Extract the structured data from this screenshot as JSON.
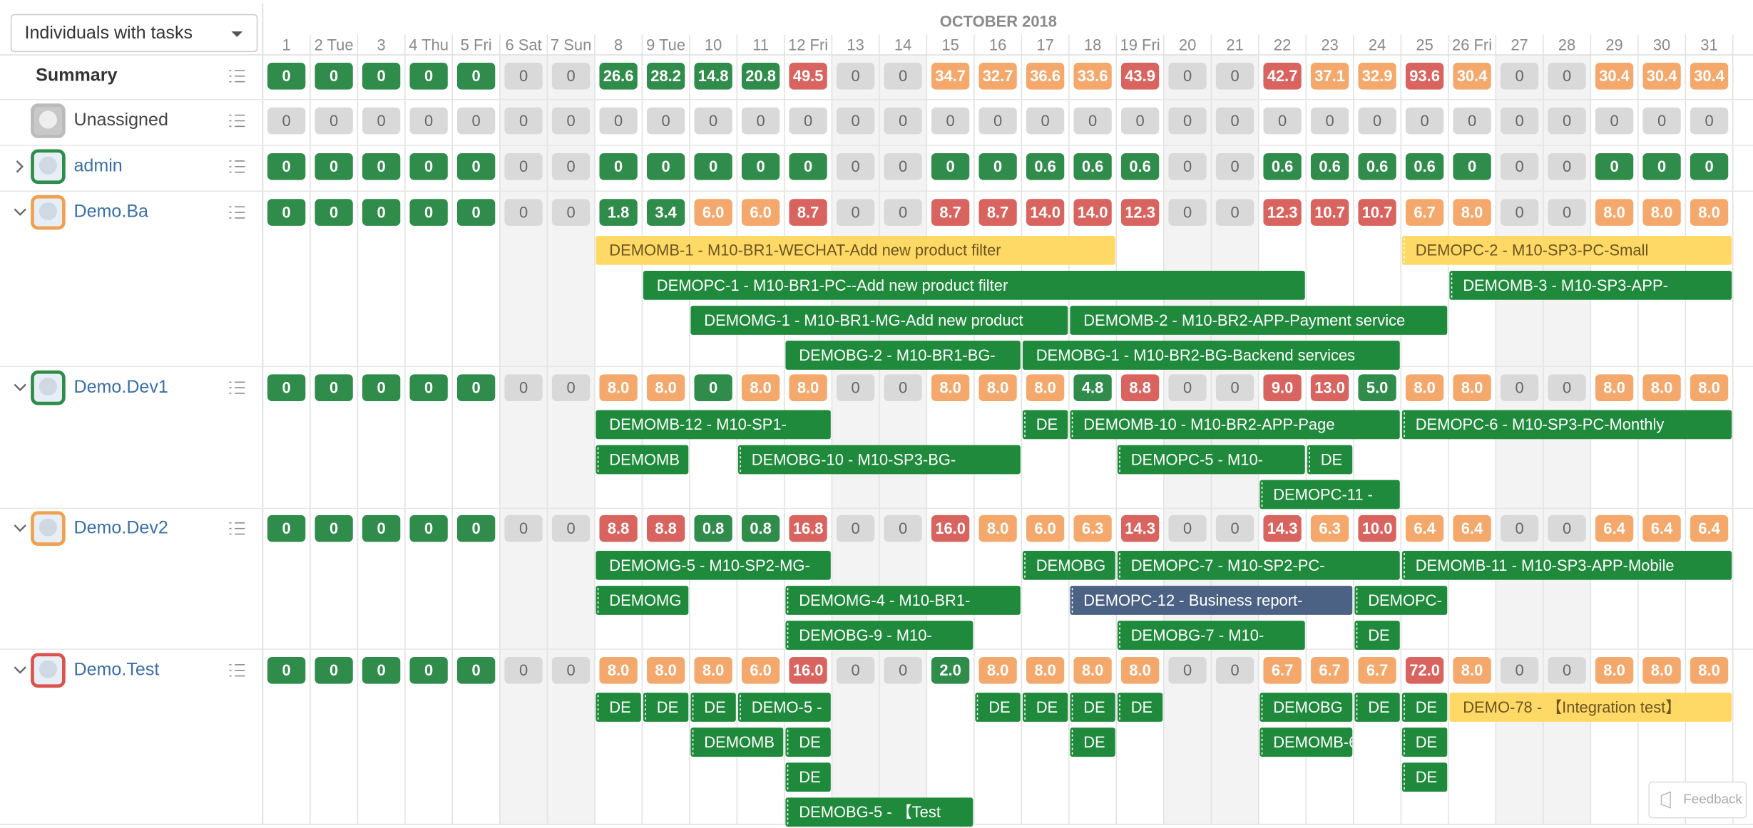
{
  "toolbar": {
    "filter": "Individuals with tasks"
  },
  "calendar": {
    "month": "OCTOBER 2018",
    "days": [
      "1",
      "2 Tue",
      "3",
      "4 Thu",
      "5 Fri",
      "6 Sat",
      "7 Sun",
      "8",
      "9 Tue",
      "10",
      "11",
      "12 Fri",
      "13",
      "14",
      "15",
      "16",
      "17",
      "18",
      "19 Fri",
      "20",
      "21",
      "22",
      "23",
      "24",
      "25",
      "26 Fri",
      "27",
      "28",
      "29",
      "30",
      "31"
    ]
  },
  "rows": [
    {
      "name": "Summary",
      "hours": [
        "0",
        "0",
        "0",
        "0",
        "0",
        "0",
        "0",
        "26.6",
        "28.2",
        "14.8",
        "20.8",
        "49.5",
        "0",
        "0",
        "34.7",
        "32.7",
        "36.6",
        "33.6",
        "43.9",
        "0",
        "0",
        "42.7",
        "37.1",
        "32.9",
        "93.6",
        "30.4",
        "0",
        "0",
        "30.4",
        "30.4",
        "30.4"
      ],
      "tasks": []
    },
    {
      "name": "Unassigned",
      "hours": [
        "0",
        "0",
        "0",
        "0",
        "0",
        "0",
        "0",
        "0",
        "0",
        "0",
        "0",
        "0",
        "0",
        "0",
        "0",
        "0",
        "0",
        "0",
        "0",
        "0",
        "0",
        "0",
        "0",
        "0",
        "0",
        "0",
        "0",
        "0",
        "0",
        "0",
        "0"
      ],
      "tasks": []
    },
    {
      "name": "admin",
      "hours": [
        "0",
        "0",
        "0",
        "0",
        "0",
        "0",
        "0",
        "0",
        "0",
        "0",
        "0",
        "0",
        "0",
        "0",
        "0",
        "0",
        "0.6",
        "0.6",
        "0.6",
        "0",
        "0",
        "0.6",
        "0.6",
        "0.6",
        "0.6",
        "0",
        "0",
        "0",
        "0",
        "0",
        "0"
      ],
      "tasks": []
    },
    {
      "name": "Demo.Ba",
      "hours": [
        "0",
        "0",
        "0",
        "0",
        "0",
        "0",
        "0",
        "1.8",
        "3.4",
        "6.0",
        "6.0",
        "8.7",
        "0",
        "0",
        "8.7",
        "8.7",
        "14.0",
        "14.0",
        "12.3",
        "0",
        "0",
        "12.3",
        "10.7",
        "10.7",
        "6.7",
        "8.0",
        "0",
        "0",
        "8.0",
        "8.0",
        "8.0"
      ],
      "tasks": [
        {
          "label": "DEMOMB-1 - M10-BR1-WECHAT-Add new product filter"
        },
        {
          "label": "DEMOPC-2 - M10-SP3-PC-Small"
        },
        {
          "label": "DEMOPC-1 - M10-BR1-PC--Add new product filter"
        },
        {
          "label": "DEMOMB-3 - M10-SP3-APP-"
        },
        {
          "label": "DEMOMG-1 - M10-BR1-MG-Add new product"
        },
        {
          "label": "DEMOMB-2 - M10-BR2-APP-Payment service"
        },
        {
          "label": "DEMOBG-2 - M10-BR1-BG-"
        },
        {
          "label": "DEMOBG-1 - M10-BR2-BG-Backend services"
        }
      ]
    },
    {
      "name": "Demo.Dev1",
      "hours": [
        "0",
        "0",
        "0",
        "0",
        "0",
        "0",
        "0",
        "8.0",
        "8.0",
        "0",
        "8.0",
        "8.0",
        "0",
        "0",
        "8.0",
        "8.0",
        "8.0",
        "4.8",
        "8.8",
        "0",
        "0",
        "9.0",
        "13.0",
        "5.0",
        "8.0",
        "8.0",
        "0",
        "0",
        "8.0",
        "8.0",
        "8.0"
      ],
      "tasks": [
        {
          "label": "DEMOMB-12 - M10-SP1-"
        },
        {
          "label": "DE"
        },
        {
          "label": "DEMOMB-10 - M10-BR2-APP-Page"
        },
        {
          "label": "DEMOPC-6 - M10-SP3-PC-Monthly"
        },
        {
          "label": "DEMOMB"
        },
        {
          "label": "DEMOBG-10 - M10-SP3-BG-"
        },
        {
          "label": "DEMOPC-5 - M10-"
        },
        {
          "label": "DE"
        },
        {
          "label": "DEMOPC-11 -"
        }
      ]
    },
    {
      "name": "Demo.Dev2",
      "hours": [
        "0",
        "0",
        "0",
        "0",
        "0",
        "0",
        "0",
        "8.8",
        "8.8",
        "0.8",
        "0.8",
        "16.8",
        "0",
        "0",
        "16.0",
        "8.0",
        "6.0",
        "6.3",
        "14.3",
        "0",
        "0",
        "14.3",
        "6.3",
        "10.0",
        "6.4",
        "6.4",
        "0",
        "0",
        "6.4",
        "6.4",
        "6.4"
      ],
      "tasks": [
        {
          "label": "DEMOMG-5 - M10-SP2-MG-"
        },
        {
          "label": "DEMOBG"
        },
        {
          "label": "DEMOPC-7 - M10-SP2-PC-"
        },
        {
          "label": "DEMOMB-11 - M10-SP3-APP-Mobile"
        },
        {
          "label": "DEMOMG"
        },
        {
          "label": "DEMOMG-4 - M10-BR1-"
        },
        {
          "label": "DEMOPC-12 - Business report-"
        },
        {
          "label": "DEMOPC-"
        },
        {
          "label": "DEMOBG-9 - M10-"
        },
        {
          "label": "DEMOBG-7 - M10-"
        },
        {
          "label": "DE"
        }
      ]
    },
    {
      "name": "Demo.Test",
      "hours": [
        "0",
        "0",
        "0",
        "0",
        "0",
        "0",
        "0",
        "8.0",
        "8.0",
        "8.0",
        "6.0",
        "16.0",
        "0",
        "0",
        "2.0",
        "8.0",
        "8.0",
        "8.0",
        "8.0",
        "0",
        "0",
        "6.7",
        "6.7",
        "6.7",
        "72.0",
        "8.0",
        "0",
        "0",
        "8.0",
        "8.0",
        "8.0"
      ],
      "tasks": [
        {
          "label": "DE"
        },
        {
          "label": "DE"
        },
        {
          "label": "DE"
        },
        {
          "label": "DEMO-5 -"
        },
        {
          "label": "DE"
        },
        {
          "label": "DE"
        },
        {
          "label": "DE"
        },
        {
          "label": "DE"
        },
        {
          "label": "DEMOBG"
        },
        {
          "label": "DE"
        },
        {
          "label": "DE"
        },
        {
          "label": "DEMO-78 - 【Integration test】"
        },
        {
          "label": "DEMOMB"
        },
        {
          "label": "DE"
        },
        {
          "label": "DE"
        },
        {
          "label": "DEMOMB-6 -"
        },
        {
          "label": "DE"
        },
        {
          "label": "DE"
        },
        {
          "label": "DE"
        },
        {
          "label": "DEMOBG-5 - 【Test"
        }
      ]
    }
  ],
  "feedback": "Feedback"
}
